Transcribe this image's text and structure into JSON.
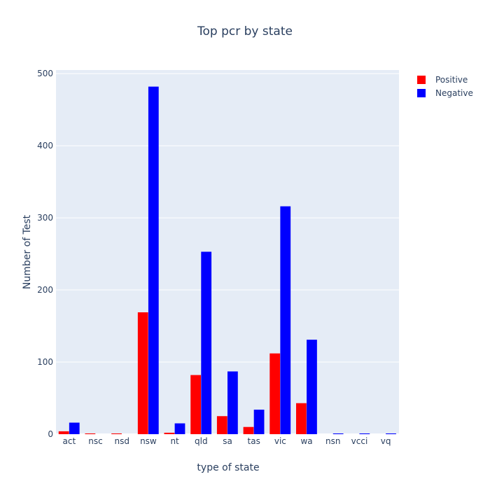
{
  "chart_data": {
    "type": "bar",
    "title": "Top pcr by state",
    "xlabel": "type of state",
    "ylabel": "Number of Test",
    "categories": [
      "act",
      "nsc",
      "nsd",
      "nsw",
      "nt",
      "qld",
      "sa",
      "tas",
      "vic",
      "wa",
      "nsn",
      "vcci",
      "vq"
    ],
    "series": [
      {
        "name": "Positive",
        "color": "#ff0000",
        "values": [
          4,
          1,
          1,
          169,
          2,
          82,
          25,
          10,
          112,
          43,
          0,
          0,
          0
        ]
      },
      {
        "name": "Negative",
        "color": "#0000ff",
        "values": [
          16,
          0,
          0,
          482,
          15,
          253,
          87,
          34,
          316,
          131,
          1,
          1,
          1
        ]
      }
    ],
    "ylim": [
      0,
      505
    ],
    "yticks": [
      0,
      100,
      200,
      300,
      400,
      500
    ],
    "grid": true,
    "legend_position": "top-right",
    "background_color": "#e5ecf6"
  }
}
